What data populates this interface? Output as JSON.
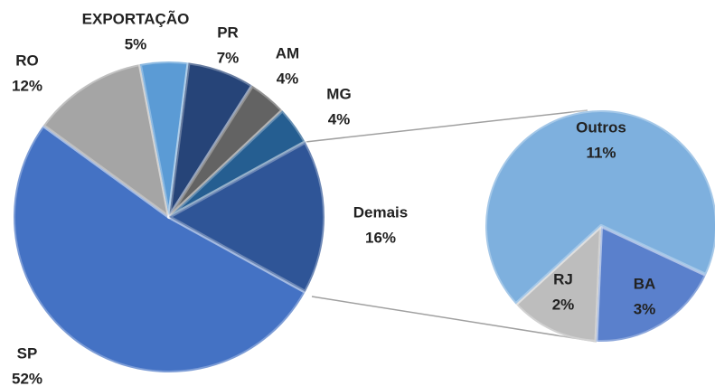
{
  "chart_data": [
    {
      "type": "pie",
      "categories": [
        "SP",
        "RO",
        "EXPORTAÇÃO",
        "PR",
        "AM",
        "MG",
        "Demais"
      ],
      "values": [
        52,
        12,
        5,
        7,
        4,
        4,
        16
      ],
      "value_labels": [
        "52%",
        "12%",
        "5%",
        "7%",
        "4%",
        "4%",
        "16%"
      ],
      "colors": [
        "#4472c4",
        "#a5a5a5",
        "#5b9bd5",
        "#264478",
        "#636363",
        "#255e91",
        "#2f5597"
      ]
    },
    {
      "type": "pie",
      "categories": [
        "BA",
        "RJ",
        "Outros"
      ],
      "values": [
        3,
        2,
        11
      ],
      "value_labels": [
        "3%",
        "2%",
        "11%"
      ],
      "colors": [
        "#5a80cc",
        "#bdbdbd",
        "#7eb0de"
      ]
    }
  ]
}
